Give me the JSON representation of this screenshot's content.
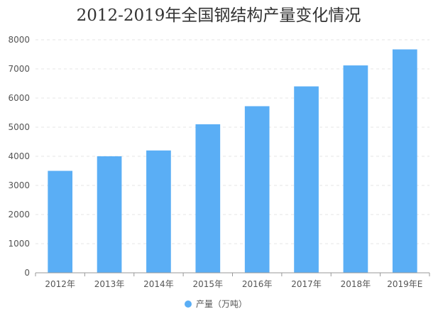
{
  "chart_data": {
    "type": "bar",
    "title": "2012-2019年全国钢结构产量变化情况",
    "categories": [
      "2012年",
      "2013年",
      "2014年",
      "2015年",
      "2016年",
      "2017年",
      "2018年",
      "2019年E"
    ],
    "series": [
      {
        "name": "产量（万吨）",
        "values": [
          3500,
          4000,
          4200,
          5100,
          5720,
          6400,
          7120,
          7670
        ],
        "color": "#5aaef5"
      }
    ],
    "ylim": [
      0,
      8000
    ],
    "yticks": [
      0,
      1000,
      2000,
      3000,
      4000,
      5000,
      6000,
      7000,
      8000
    ],
    "grid": true,
    "legend_position": "bottom-center"
  }
}
